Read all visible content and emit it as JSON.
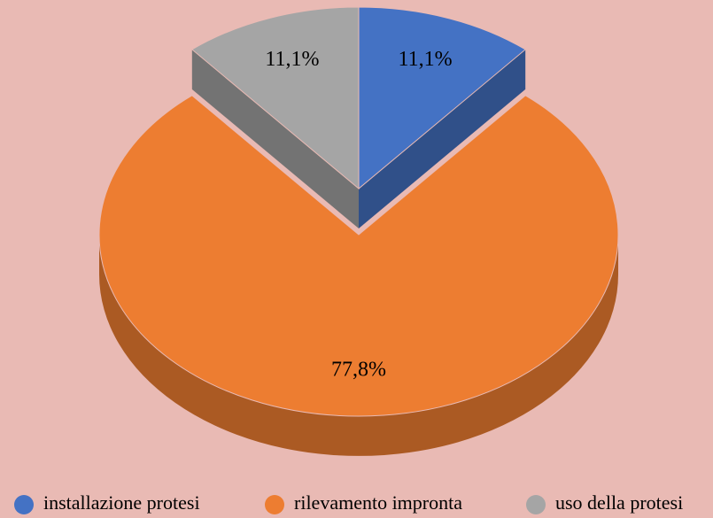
{
  "chart_data": {
    "type": "pie3d",
    "categories": [
      "installazione protesi",
      "rilevamento impronta",
      "uso della protesi"
    ],
    "values": [
      11.1,
      77.8,
      11.1
    ],
    "value_labels": [
      "11,1%",
      "77,8%",
      "11,1%"
    ],
    "colors": [
      "#4472c4",
      "#ed7d31",
      "#a5a5a5"
    ],
    "legend": "bottom"
  }
}
